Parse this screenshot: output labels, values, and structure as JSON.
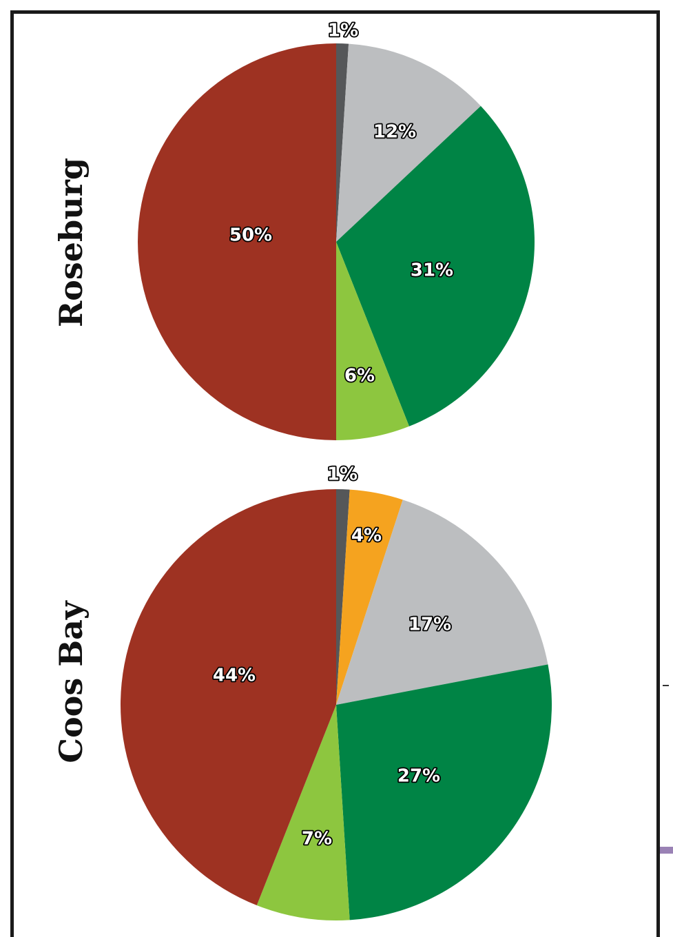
{
  "chart_data": [
    {
      "type": "pie",
      "title": "Roseburg",
      "slices": [
        {
          "label": "1%",
          "value": 1,
          "color": "#555759"
        },
        {
          "label": "12%",
          "value": 12,
          "color": "#bcbec0"
        },
        {
          "label": "31%",
          "value": 31,
          "color": "#008445"
        },
        {
          "label": "6%",
          "value": 6,
          "color": "#8dc63f"
        },
        {
          "label": "50%",
          "value": 50,
          "color": "#9e3222"
        }
      ]
    },
    {
      "type": "pie",
      "title": "Coos Bay",
      "slices": [
        {
          "label": "1%",
          "value": 1,
          "color": "#555759"
        },
        {
          "label": "4%",
          "value": 4,
          "color": "#f5a31f"
        },
        {
          "label": "17%",
          "value": 17,
          "color": "#bcbec0"
        },
        {
          "label": "27%",
          "value": 27,
          "color": "#008445"
        },
        {
          "label": "7%",
          "value": 7,
          "color": "#8dc63f"
        },
        {
          "label": "44%",
          "value": 44,
          "color": "#9e3222"
        }
      ]
    }
  ]
}
